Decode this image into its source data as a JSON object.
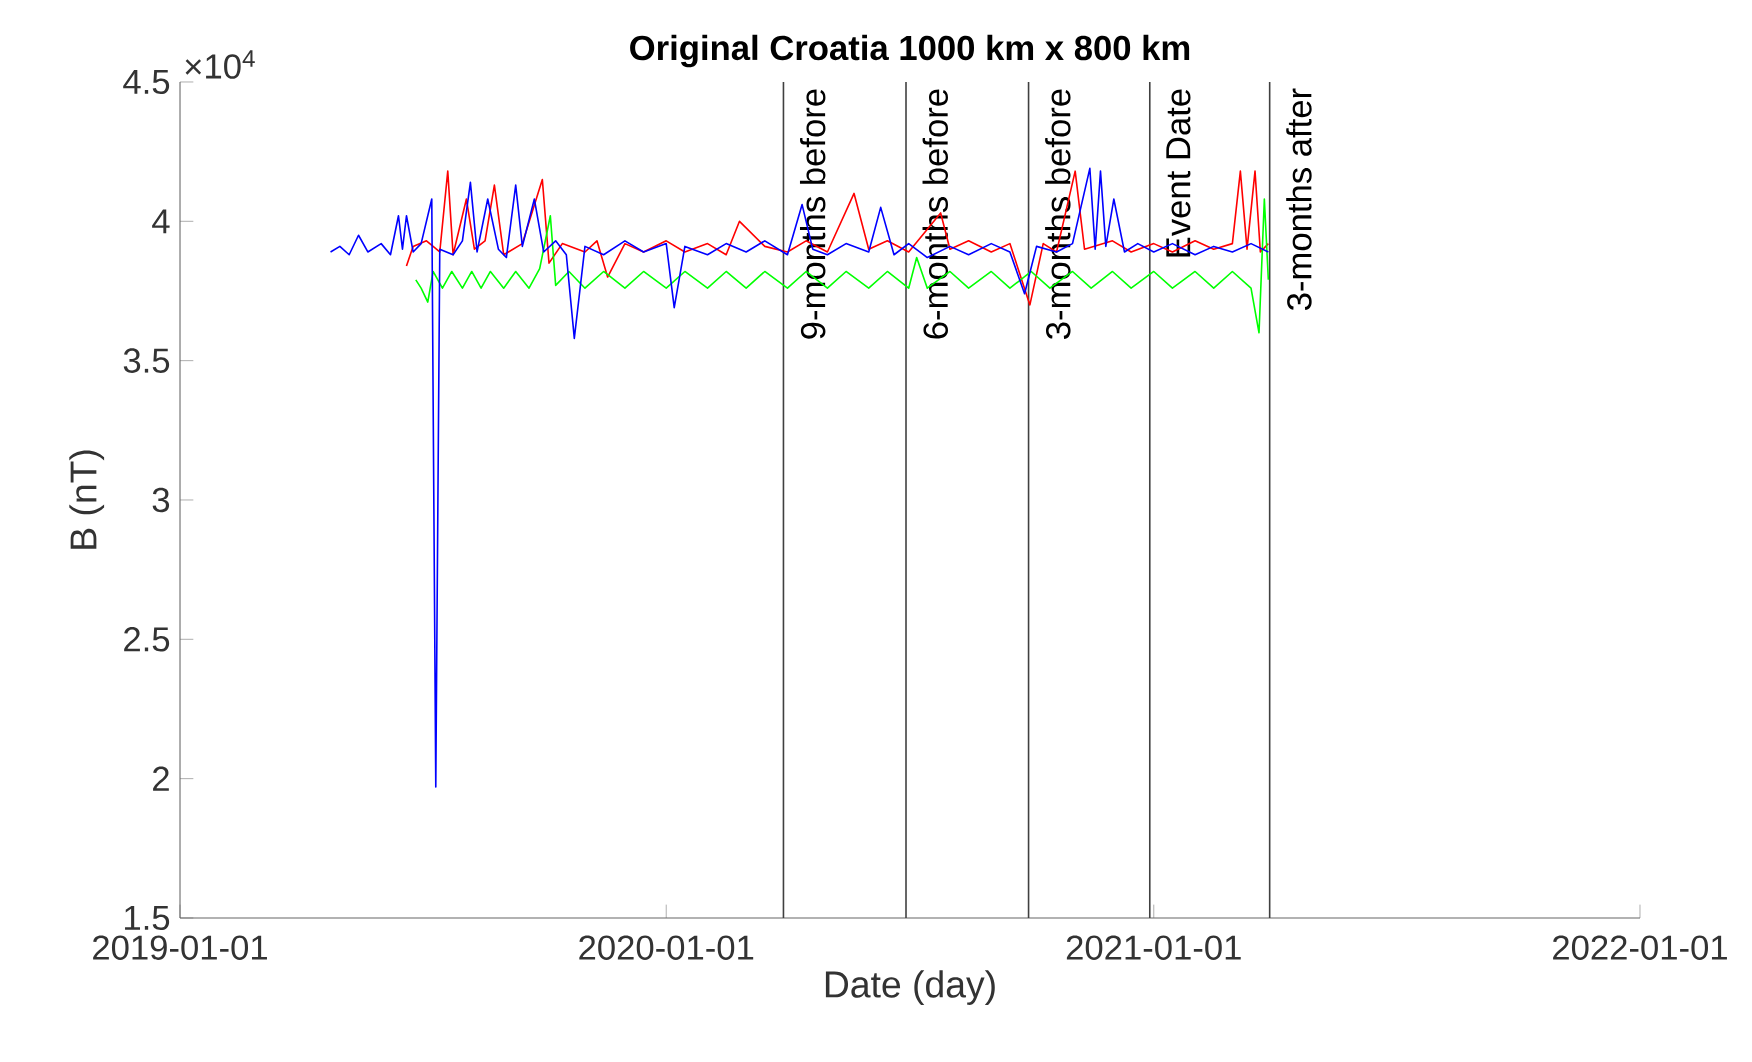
{
  "chart_data": {
    "type": "line",
    "title": "Original Croatia 1000 km x 800 km",
    "xlabel": "Date (day)",
    "ylabel": "B (nT)",
    "annotations": [
      "×10$^{4}$"
    ],
    "xlim": [
      "2019-01-01",
      "2022-01-01"
    ],
    "xticks": [
      "2019-01-01",
      "2020-01-01",
      "2021-01-01",
      "2022-01-01"
    ],
    "ylim": [
      1.5,
      4.5
    ],
    "yticks": [
      1.5,
      2,
      2.5,
      3,
      3.5,
      4,
      4.5
    ],
    "grid": false,
    "marker": "none",
    "line_style": "solid",
    "ref_lines": [
      {
        "axis": "x",
        "value": "2020-03-29",
        "label": "9-months before",
        "color": "#404040"
      },
      {
        "axis": "x",
        "value": "2020-06-29",
        "label": "6-months before",
        "color": "#404040"
      },
      {
        "axis": "x",
        "value": "2020-09-29",
        "label": "3-months before",
        "color": "#404040"
      },
      {
        "axis": "x",
        "value": "2020-12-29",
        "label": "Event Date",
        "color": "#404040"
      },
      {
        "axis": "x",
        "value": "2021-03-29",
        "label": "3-months after",
        "color": "#404040"
      }
    ],
    "series": [
      {
        "color": "#ff0000",
        "x": [
          "2019-06-20",
          "2019-06-25",
          "2019-07-05",
          "2019-07-15",
          "2019-07-21",
          "2019-07-25",
          "2019-08-04",
          "2019-08-10",
          "2019-08-18",
          "2019-08-25",
          "2019-09-01",
          "2019-09-15",
          "2019-09-30",
          "2019-10-05",
          "2019-10-15",
          "2019-11-01",
          "2019-11-10",
          "2019-11-18",
          "2019-12-01",
          "2019-12-15",
          "2020-01-01",
          "2020-01-15",
          "2020-02-01",
          "2020-02-15",
          "2020-02-25",
          "2020-03-15",
          "2020-04-01",
          "2020-04-15",
          "2020-05-01",
          "2020-05-21",
          "2020-06-01",
          "2020-06-15",
          "2020-07-01",
          "2020-07-25",
          "2020-08-01",
          "2020-08-15",
          "2020-09-01",
          "2020-09-15",
          "2020-09-30",
          "2020-10-10",
          "2020-10-20",
          "2020-11-03",
          "2020-11-10",
          "2020-12-01",
          "2020-12-15",
          "2021-01-01",
          "2021-01-15",
          "2021-02-01",
          "2021-02-15",
          "2021-03-01",
          "2021-03-07",
          "2021-03-12",
          "2021-03-18",
          "2021-03-22",
          "2021-03-28"
        ],
        "values": [
          3.84,
          3.91,
          3.93,
          3.89,
          4.18,
          3.88,
          4.08,
          3.9,
          3.93,
          4.13,
          3.88,
          3.92,
          4.15,
          3.85,
          3.92,
          3.89,
          3.93,
          3.8,
          3.92,
          3.89,
          3.93,
          3.89,
          3.92,
          3.88,
          4.0,
          3.91,
          3.89,
          3.93,
          3.89,
          4.1,
          3.9,
          3.93,
          3.89,
          4.03,
          3.9,
          3.93,
          3.89,
          3.92,
          3.7,
          3.92,
          3.89,
          4.18,
          3.9,
          3.93,
          3.89,
          3.92,
          3.89,
          3.93,
          3.9,
          3.92,
          4.18,
          3.9,
          4.18,
          3.89,
          3.92
        ]
      },
      {
        "color": "#00ff00",
        "x": [
          "2019-06-27",
          "2019-07-01",
          "2019-07-06",
          "2019-07-10",
          "2019-07-17",
          "2019-07-24",
          "2019-08-01",
          "2019-08-08",
          "2019-08-15",
          "2019-08-22",
          "2019-09-01",
          "2019-09-10",
          "2019-09-20",
          "2019-09-28",
          "2019-10-06",
          "2019-10-10",
          "2019-10-20",
          "2019-11-01",
          "2019-11-15",
          "2019-12-01",
          "2019-12-15",
          "2020-01-01",
          "2020-01-15",
          "2020-02-01",
          "2020-02-15",
          "2020-03-01",
          "2020-03-15",
          "2020-04-01",
          "2020-04-15",
          "2020-05-01",
          "2020-05-15",
          "2020-06-01",
          "2020-06-15",
          "2020-07-01",
          "2020-07-07",
          "2020-07-15",
          "2020-08-01",
          "2020-08-15",
          "2020-09-01",
          "2020-09-15",
          "2020-10-01",
          "2020-10-15",
          "2020-11-01",
          "2020-11-15",
          "2020-12-01",
          "2020-12-15",
          "2021-01-01",
          "2021-01-15",
          "2021-02-01",
          "2021-02-15",
          "2021-03-01",
          "2021-03-15",
          "2021-03-21",
          "2021-03-25",
          "2021-03-28"
        ],
        "values": [
          3.79,
          3.76,
          3.71,
          3.82,
          3.76,
          3.82,
          3.76,
          3.82,
          3.76,
          3.82,
          3.76,
          3.82,
          3.76,
          3.83,
          4.02,
          3.77,
          3.82,
          3.76,
          3.82,
          3.76,
          3.82,
          3.76,
          3.82,
          3.76,
          3.82,
          3.76,
          3.82,
          3.76,
          3.82,
          3.76,
          3.82,
          3.76,
          3.82,
          3.76,
          3.87,
          3.76,
          3.82,
          3.76,
          3.82,
          3.76,
          3.82,
          3.76,
          3.82,
          3.76,
          3.82,
          3.76,
          3.82,
          3.76,
          3.82,
          3.76,
          3.82,
          3.76,
          3.6,
          4.08,
          3.79
        ]
      },
      {
        "color": "#0000ff",
        "x": [
          "2019-04-24",
          "2019-05-01",
          "2019-05-08",
          "2019-05-15",
          "2019-05-22",
          "2019-06-01",
          "2019-06-08",
          "2019-06-14",
          "2019-06-17",
          "2019-06-20",
          "2019-06-25",
          "2019-07-01",
          "2019-07-09",
          "2019-07-12",
          "2019-07-15",
          "2019-07-25",
          "2019-08-01",
          "2019-08-07",
          "2019-08-12",
          "2019-08-20",
          "2019-08-28",
          "2019-09-03",
          "2019-09-10",
          "2019-09-15",
          "2019-09-24",
          "2019-10-01",
          "2019-10-10",
          "2019-10-18",
          "2019-10-24",
          "2019-11-01",
          "2019-11-15",
          "2019-12-01",
          "2019-12-15",
          "2020-01-01",
          "2020-01-07",
          "2020-01-15",
          "2020-02-01",
          "2020-02-15",
          "2020-03-01",
          "2020-03-15",
          "2020-04-01",
          "2020-04-12",
          "2020-04-20",
          "2020-05-01",
          "2020-05-15",
          "2020-06-01",
          "2020-06-10",
          "2020-06-20",
          "2020-07-01",
          "2020-07-15",
          "2020-08-01",
          "2020-08-15",
          "2020-09-01",
          "2020-09-15",
          "2020-09-26",
          "2020-10-05",
          "2020-10-20",
          "2020-11-01",
          "2020-11-14",
          "2020-11-18",
          "2020-11-22",
          "2020-11-26",
          "2020-12-02",
          "2020-12-10",
          "2020-12-20",
          "2021-01-01",
          "2021-01-15",
          "2021-02-01",
          "2021-02-15",
          "2021-03-01",
          "2021-03-15",
          "2021-03-28"
        ],
        "values": [
          3.89,
          3.91,
          3.88,
          3.95,
          3.89,
          3.92,
          3.88,
          4.02,
          3.9,
          4.02,
          3.89,
          3.92,
          4.08,
          1.97,
          3.9,
          3.88,
          3.93,
          4.14,
          3.89,
          4.08,
          3.9,
          3.87,
          4.13,
          3.91,
          4.08,
          3.89,
          3.93,
          3.88,
          3.58,
          3.91,
          3.88,
          3.93,
          3.89,
          3.92,
          3.69,
          3.91,
          3.88,
          3.92,
          3.89,
          3.93,
          3.88,
          4.06,
          3.9,
          3.88,
          3.92,
          3.89,
          4.05,
          3.88,
          3.92,
          3.87,
          3.91,
          3.88,
          3.92,
          3.89,
          3.74,
          3.91,
          3.89,
          3.92,
          4.19,
          3.9,
          4.18,
          3.91,
          4.08,
          3.89,
          3.92,
          3.89,
          3.92,
          3.88,
          3.91,
          3.89,
          3.92,
          3.89
        ]
      }
    ]
  }
}
